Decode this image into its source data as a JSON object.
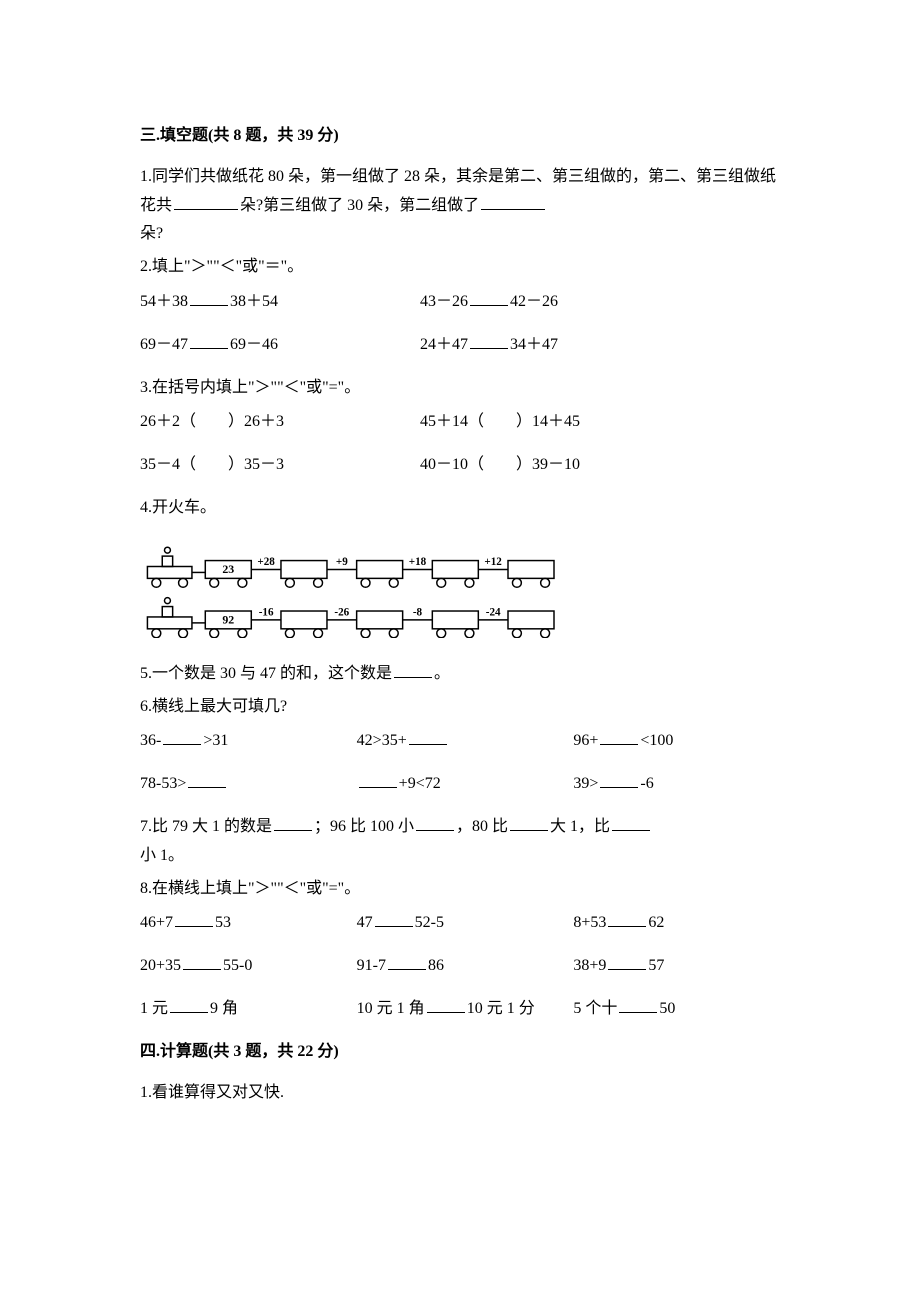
{
  "section3": {
    "heading": "三.填空题(共 8 题，共 39 分)",
    "q1_a": "1.同学们共做纸花 80 朵，第一组做了 28 朵，其余是第二、第三组做的，第二、第三组做纸花共",
    "q1_b": "朵?第三组做了 30 朵，第二组做了",
    "q1_c": "朵?",
    "q2_head": "2.填上\"＞\"\"＜\"或\"＝\"。",
    "q2_r1c1a": "54＋38",
    "q2_r1c1b": "38＋54",
    "q2_r1c2a": "43－26",
    "q2_r1c2b": "42－26",
    "q2_r2c1a": "69－47",
    "q2_r2c1b": "69－46",
    "q2_r2c2a": "24＋47",
    "q2_r2c2b": "34＋47",
    "q3_head": "3.在括号内填上\"＞\"\"＜\"或\"=\"。",
    "q3_r1c1": "26＋2（　　）26＋3",
    "q3_r1c2": "45＋14（　　）14＋45",
    "q3_r2c1": "35－4（　　）35－3",
    "q3_r2c2": "40－10（　　）39－10",
    "q4_head": "4.开火车。",
    "train1": {
      "start": "23",
      "ops": [
        "+28",
        "+9",
        "+18",
        "+12"
      ]
    },
    "train2": {
      "start": "92",
      "ops": [
        "-16",
        "-26",
        "-8",
        "-24"
      ]
    },
    "q5_a": "5.一个数是 30 与 47 的和，这个数是",
    "q5_b": "。",
    "q6_head": "6.横线上最大可填几?",
    "q6_r1c1a": "36-",
    "q6_r1c1b": ">31",
    "q6_r1c2a": "42>35+",
    "q6_r1c3a": "96+",
    "q6_r1c3b": "<100",
    "q6_r2c1a": "78-53>",
    "q6_r2c2b": "+9<72",
    "q6_r2c3a": "39>",
    "q6_r2c3b": "-6",
    "q7_a": "7.比 79 大 1 的数是",
    "q7_b": "；96 比 100 小",
    "q7_c": "，80 比",
    "q7_d": "大 1，比",
    "q7_e": "小 1。",
    "q8_head": "8.在横线上填上\"＞\"\"＜\"或\"=\"。",
    "q8_r1c1a": "46+7",
    "q8_r1c1b": "53",
    "q8_r1c2a": "47",
    "q8_r1c2b": "52-5",
    "q8_r1c3a": "8+53",
    "q8_r1c3b": "62",
    "q8_r2c1a": "20+35",
    "q8_r2c1b": "55-0",
    "q8_r2c2a": "91-7",
    "q8_r2c2b": "86",
    "q8_r2c3a": "38+9",
    "q8_r2c3b": "57",
    "q8_r3c1a": "1 元",
    "q8_r3c1b": "9 角",
    "q8_r3c2a": "10 元 1 角",
    "q8_r3c2b": "10 元 1 分",
    "q8_r3c3a": "5 个十",
    "q8_r3c3b": "50"
  },
  "section4": {
    "heading": "四.计算题(共 3 题，共 22 分)",
    "q1": "1.看谁算得又对又快."
  },
  "style": {
    "text_color": "#000000",
    "bg_color": "#ffffff",
    "font_size_pt": 12,
    "line_stroke": "#000000",
    "train_stroke_width": 2
  }
}
